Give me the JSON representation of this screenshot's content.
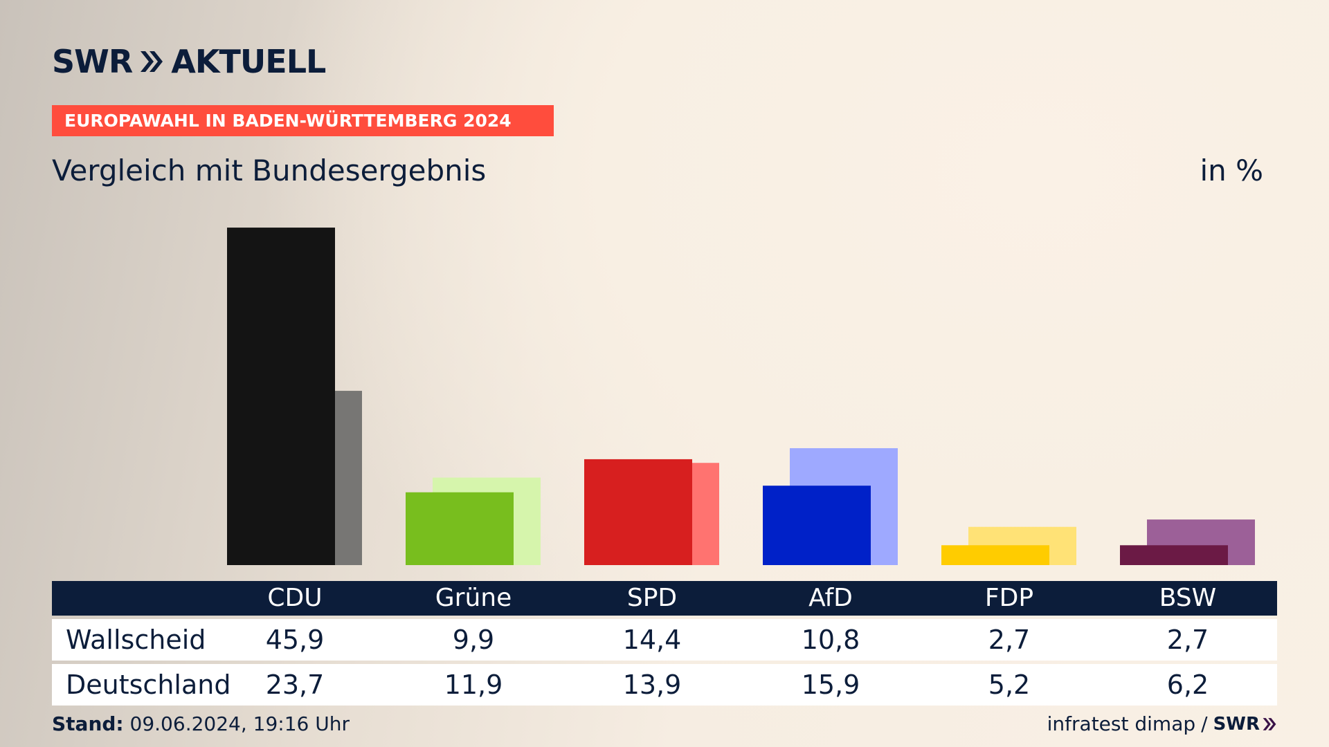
{
  "brand": {
    "logo_text_left": "SWR",
    "logo_text_right": "AKTUELL",
    "navy": "#0c1d3a",
    "red": "#ff4d3d"
  },
  "kicker": "EUROPAWAHL IN BADEN-WÜRTTEMBERG 2024",
  "subtitle": "Vergleich mit Bundesergebnis",
  "unit": "in %",
  "table": {
    "rows": [
      {
        "label": "Wallscheid",
        "values": [
          "45,9",
          "9,9",
          "14,4",
          "10,8",
          "2,7",
          "2,7"
        ]
      },
      {
        "label": "Deutschland",
        "values": [
          "23,7",
          "11,9",
          "13,9",
          "15,9",
          "5,2",
          "6,2"
        ]
      }
    ]
  },
  "footer": {
    "stand_label": "Stand:",
    "stand_value": "09.06.2024, 19:16 Uhr",
    "source": "infratest dimap",
    "separator": "/",
    "source_brand": "SWR"
  },
  "chart_data": {
    "type": "bar",
    "categories": [
      "CDU",
      "Grüne",
      "SPD",
      "AfD",
      "FDP",
      "BSW"
    ],
    "series": [
      {
        "name": "Wallscheid",
        "values": [
          45.9,
          9.9,
          14.4,
          10.8,
          2.7,
          2.7
        ]
      },
      {
        "name": "Deutschland",
        "values": [
          23.7,
          11.9,
          13.9,
          15.9,
          5.2,
          6.2
        ]
      }
    ],
    "colors_primary": [
      "#141414",
      "#78be1e",
      "#d71f1f",
      "#0021c8",
      "#ffcc00",
      "#6b1a45"
    ],
    "colors_secondary": [
      "#777674",
      "#d6f5ac",
      "#ff7370",
      "#9ea9ff",
      "#ffe276",
      "#9c6098"
    ],
    "ylim": [
      0,
      46
    ],
    "grid": false,
    "legend": "table-below"
  }
}
